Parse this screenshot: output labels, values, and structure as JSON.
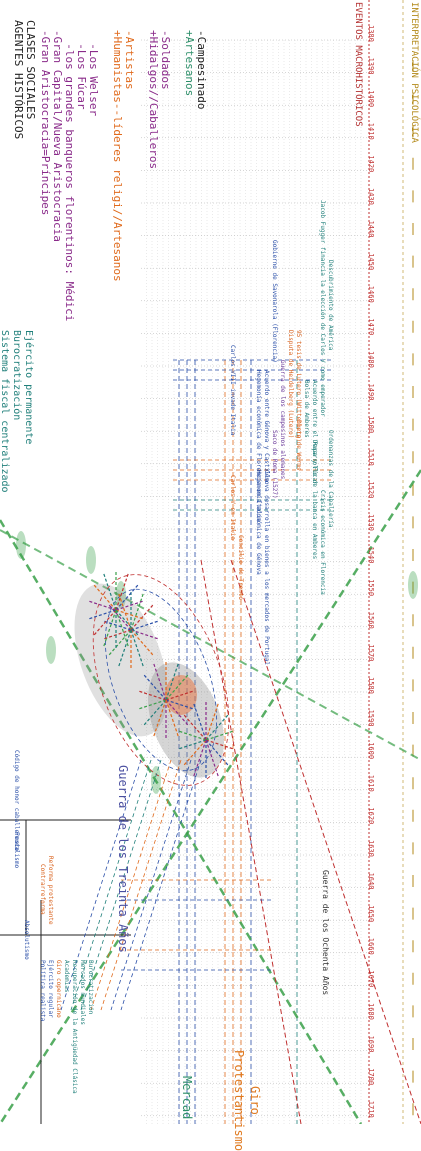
{
  "header": {
    "title_line1": "AGENTES HISTÓRICOS",
    "title_line2": "CLASES SOCIALES"
  },
  "social_classes": [
    {
      "text": "-Gran Aristocracia=Príncipes",
      "color": "purple"
    },
    {
      "text": "-Gran Capital/Nueva Aristocracia",
      "color": "purple"
    },
    {
      "text": "  -los grandes banqueros florentinos: Médici",
      "color": "purple"
    },
    {
      "text": "  -Los Fúcar",
      "color": "purple"
    },
    {
      "text": "  -Los Welser",
      "color": "purple"
    },
    {
      "text": "+Humanistas--líderes religi//Artesanos",
      "color": "orange"
    },
    {
      "text": "-Artistas",
      "color": "orange"
    },
    {
      "text": "+Hidalgos//Caballeros",
      "color": "purple"
    },
    {
      "text": "-Soldados",
      "color": "purple"
    },
    {
      "text": "+Artesanos",
      "color": "green"
    },
    {
      "text": "-Campesinado",
      "color": "black"
    }
  ],
  "state_labels": [
    "Sistema fiscal centralizado",
    "Burocratización",
    "Ejército permanente"
  ],
  "left_axis": {
    "eventos": "EVENTOS MACROHISTÓRICOS",
    "interpretacion": "INTERPRETACIÓN PSICOLÓGICA"
  },
  "years": [
    "1380",
    "1390",
    "1400",
    "1410",
    "1420",
    "1430",
    "1440",
    "1450",
    "1460",
    "1470",
    "1480",
    "1490",
    "1500",
    "1510",
    "1520",
    "1530",
    "1540",
    "1550",
    "1560",
    "1570",
    "1580",
    "1590",
    "1600",
    "1610",
    "1620",
    "1630",
    "1640",
    "1650",
    "1660",
    "1670",
    "1680",
    "1690",
    "1700",
    "1710"
  ],
  "events": [
    {
      "text": "Carlos VIII invade Italia",
      "color": "blue"
    },
    {
      "text": "Carlos V en Italia",
      "color": "orange"
    },
    {
      "text": "Hegemonía económica de Florencia en Italia",
      "color": "blue"
    },
    {
      "text": "Acuerdo entre Génova y Castilla",
      "color": "blue"
    },
    {
      "text": "Génova desarrolla en bienes a los mercados de Portugal",
      "color": "blue"
    },
    {
      "text": "Hegemonía económica de Génova",
      "color": "blue"
    },
    {
      "text": "Gobierno de Savonarola (Florencia)",
      "color": "blue"
    },
    {
      "text": "Guerra de los campesinos alemanes",
      "color": "purple"
    },
    {
      "text": "Saco de Roma (1527)",
      "color": "purple"
    },
    {
      "text": "Concilio de Trento",
      "color": "orange"
    },
    {
      "text": "Disputa de Heidelberg (Lutero)",
      "color": "orange"
    },
    {
      "text": "95 tesis de Lutero (Wittenberg)",
      "color": "orange"
    },
    {
      "text": "Dieta de Worms",
      "color": "orange"
    },
    {
      "text": "Bolsa de Amberes",
      "color": "teal"
    },
    {
      "text": "Acuerdo entre el Papa y Fúcar",
      "color": "teal"
    },
    {
      "text": "Jacob Fugger financia la elección de Carlos V como emperador",
      "color": "teal"
    },
    {
      "text": "Crisis económica en Florencia",
      "color": "teal"
    },
    {
      "text": "Desarrollo de la banca en Amberes",
      "color": "teal"
    },
    {
      "text": "Descubrimiento de América",
      "color": "teal"
    },
    {
      "text": "Ordenanzas de la Caballería",
      "color": "teal"
    }
  ],
  "wars": {
    "thirty_years": "Guerra de los Treinta Años",
    "eighty_years": "Guerra de los Ochenta Años"
  },
  "right_concepts": [
    {
      "text": "Código de honor caballeresco",
      "color": "blue"
    },
    {
      "text": "Feudalismo",
      "color": "blue"
    },
    {
      "text": "Contrarreforma",
      "color": "orange"
    },
    {
      "text": "Reforma protestante",
      "color": "orange"
    },
    {
      "text": "Absolutismo",
      "color": "blue"
    },
    {
      "text": "Política realista",
      "color": "blue"
    },
    {
      "text": "Ejército regular",
      "color": "blue"
    },
    {
      "text": "Giro copernicano",
      "color": "orange"
    },
    {
      "text": "Academias",
      "color": "teal"
    },
    {
      "text": "Recuperación de la Antigüedad Clásica",
      "color": "teal"
    },
    {
      "text": "Mercados mundiales",
      "color": "teal"
    },
    {
      "text": "Burocratización",
      "color": "teal"
    }
  ],
  "bottom_labels": {
    "protestantismo": "Protestantismo",
    "giro": "Giro",
    "mercado": "Mercad"
  },
  "colors": {
    "red": "#c03030",
    "blue": "#2a4fa8",
    "orange": "#e06a1c",
    "green": "#3aa04a",
    "purple": "#8a2b8a",
    "teal": "#1f7f7a"
  }
}
